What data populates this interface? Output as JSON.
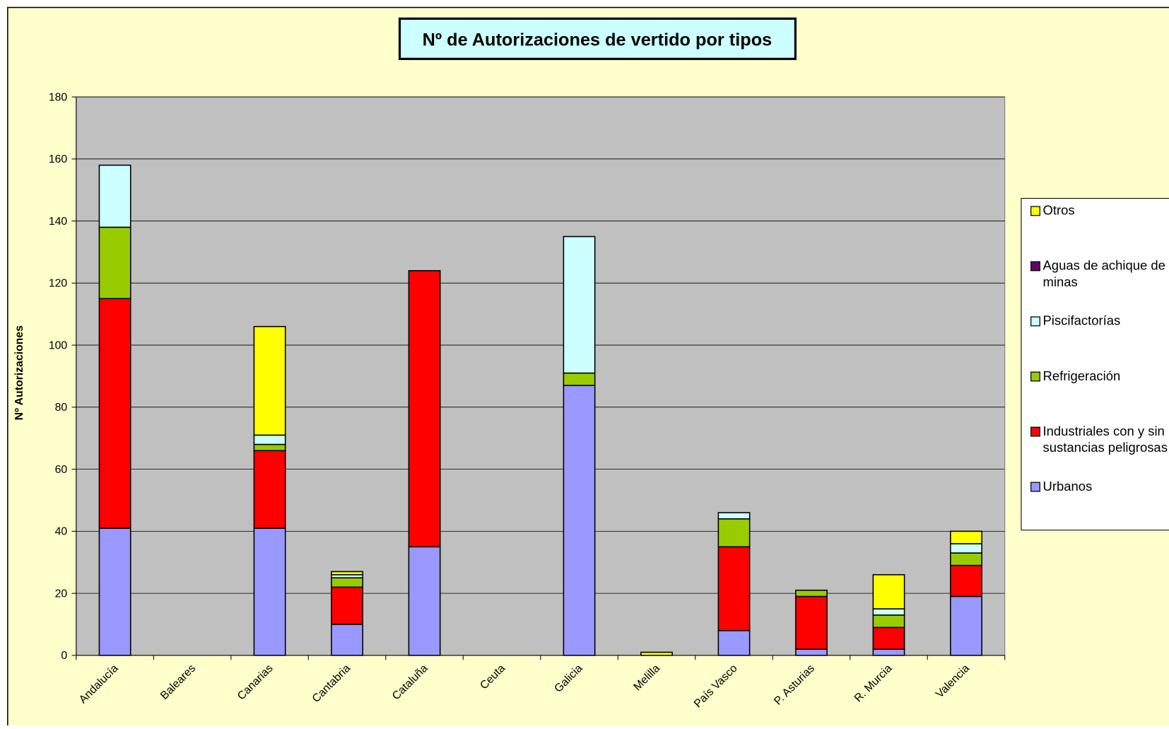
{
  "chart_data": {
    "type": "stacked_bar",
    "title": "Nº de Autorizaciones de vertido por tipos",
    "y_label": "Nº Autorizaciones",
    "categories": [
      "Andalucía",
      "Baleares",
      "Canarias",
      "Cantabria",
      "Cataluña",
      "Ceuta",
      "Galicia",
      "Melilla",
      "País Vasco",
      "P. Asturias",
      "R. Murcia",
      "Valencia"
    ],
    "series": [
      {
        "name": "Urbanos",
        "color": "#9999ff",
        "values": [
          41,
          0,
          41,
          10,
          35,
          0,
          87,
          0,
          8,
          2,
          2,
          19
        ]
      },
      {
        "name": "Industriales con y sin sustancias peligrosas",
        "color": "#ff0000",
        "values": [
          74,
          0,
          25,
          12,
          89,
          0,
          0,
          0,
          27,
          17,
          7,
          10
        ]
      },
      {
        "name": "Refrigeración",
        "color": "#99cc00",
        "values": [
          23,
          0,
          2,
          3,
          0,
          0,
          4,
          0,
          9,
          2,
          4,
          4
        ]
      },
      {
        "name": "Piscifactorías",
        "color": "#ccffff",
        "values": [
          20,
          0,
          3,
          1,
          0,
          0,
          44,
          0,
          2,
          0,
          2,
          3
        ]
      },
      {
        "name": "Aguas de achique de minas",
        "color": "#660066",
        "values": [
          0,
          0,
          0,
          0,
          0,
          0,
          0,
          0,
          0,
          0,
          0,
          0
        ]
      },
      {
        "name": "Otros",
        "color": "#ffff00",
        "values": [
          0,
          0,
          35,
          1,
          0,
          0,
          0,
          1,
          0,
          0,
          11,
          4
        ]
      }
    ],
    "ylim": [
      0,
      180
    ],
    "yticks": [
      0,
      20,
      40,
      60,
      80,
      100,
      120,
      140,
      160,
      180
    ],
    "grid": true
  }
}
